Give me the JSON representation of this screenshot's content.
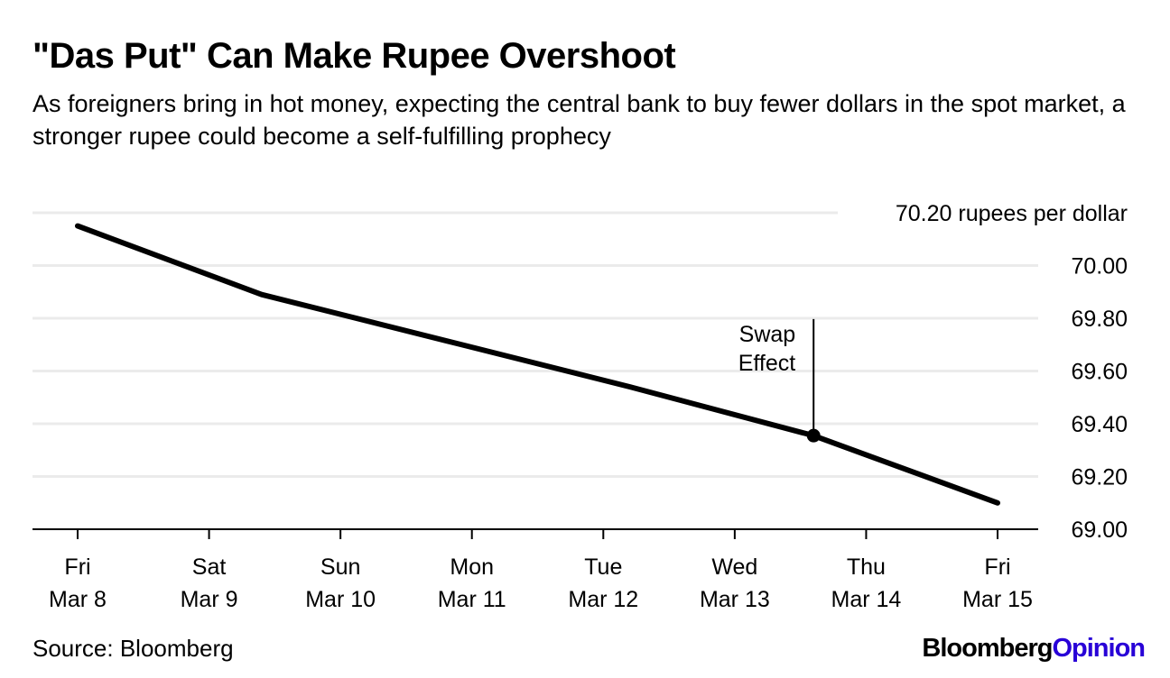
{
  "header": {
    "title": "\"Das Put\" Can Make Rupee Overshoot",
    "subtitle": "As foreigners bring in hot money, expecting the central bank to buy fewer dollars in the spot market, a stronger rupee could become a self-fulfilling prophecy"
  },
  "footer": {
    "source": "Source: Bloomberg",
    "logo_part1": "Bloomberg",
    "logo_part2": "Opinion"
  },
  "colors": {
    "line": "#000000",
    "grid": "#ebebeb",
    "axis": "#000000",
    "brand_opinion": "#2800d7"
  },
  "chart_data": {
    "type": "line",
    "title": "\"Das Put\" Can Make Rupee Overshoot",
    "ylabel": "rupees per dollar",
    "y_unit_label": "70.20 rupees per dollar",
    "ylim": [
      69.0,
      70.2
    ],
    "yticks": [
      69.0,
      69.2,
      69.4,
      69.6,
      69.8,
      70.0,
      70.2
    ],
    "ytick_labels": [
      "69.00",
      "69.20",
      "69.40",
      "69.60",
      "69.80",
      "70.00",
      "70.20"
    ],
    "xlim": [
      0,
      7
    ],
    "xticks": [
      {
        "day": "Fri",
        "date": "Mar 8"
      },
      {
        "day": "Sat",
        "date": "Mar 9"
      },
      {
        "day": "Sun",
        "date": "Mar 10"
      },
      {
        "day": "Mon",
        "date": "Mar 11"
      },
      {
        "day": "Tue",
        "date": "Mar 12"
      },
      {
        "day": "Wed",
        "date": "Mar 13"
      },
      {
        "day": "Thu",
        "date": "Mar 14"
      },
      {
        "day": "Fri",
        "date": "Mar 15"
      }
    ],
    "grid": true,
    "legend": "none",
    "series": [
      {
        "name": "Rupees per dollar",
        "x": [
          0,
          1.4,
          4.2,
          5.6,
          7
        ],
        "y": [
          70.15,
          69.89,
          69.54,
          69.355,
          69.1
        ]
      }
    ],
    "annotations": [
      {
        "text_line1": "Swap",
        "text_line2": "Effect",
        "x": 5.6,
        "y": 69.355,
        "label_y": 69.78
      }
    ]
  }
}
